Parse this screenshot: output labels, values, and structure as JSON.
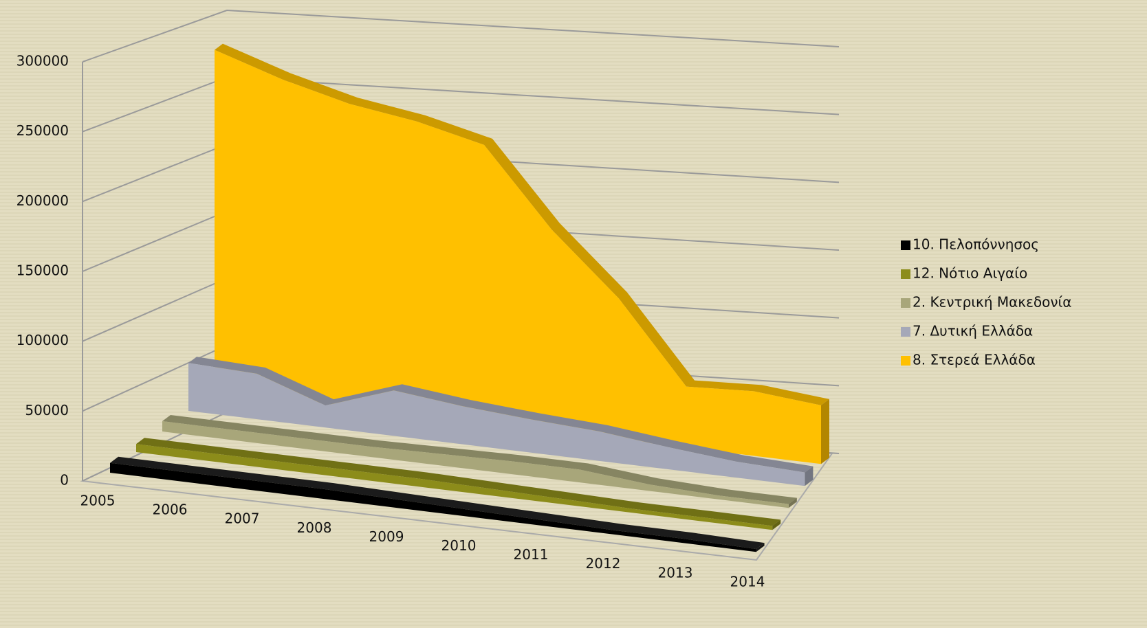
{
  "chart_data": {
    "type": "area3d",
    "categories": [
      "2005",
      "2006",
      "2007",
      "2008",
      "2009",
      "2010",
      "2011",
      "2012",
      "2013",
      "2014"
    ],
    "series": [
      {
        "name": "10. Πελοπόννησος",
        "color": "#000000",
        "values": [
          7000,
          7000,
          7000,
          7000,
          6000,
          5000,
          4000,
          3000,
          3000,
          2000
        ]
      },
      {
        "name": "12. Νότιο Αιγαίο",
        "color": "#8c8c1a",
        "values": [
          6000,
          6000,
          6000,
          6000,
          6000,
          5000,
          4000,
          3000,
          3000,
          3000
        ]
      },
      {
        "name": "2. Κεντρική Μακεδονία",
        "color": "#a8a67a",
        "values": [
          8000,
          8000,
          8000,
          8000,
          9000,
          10000,
          10000,
          5000,
          3000,
          3000
        ]
      },
      {
        "name": "7. Δυτική Ελλάδα",
        "color": "#a5a8b8",
        "values": [
          39000,
          37000,
          18000,
          37000,
          31000,
          27000,
          24000,
          18000,
          13000,
          11000
        ]
      },
      {
        "name": "8. Στερεά Ελλάδα",
        "color": "#ffc000",
        "values": [
          290000,
          272000,
          258000,
          250000,
          237000,
          172000,
          120000,
          52000,
          55000,
          50000
        ]
      }
    ],
    "ylim": [
      0,
      300000
    ],
    "yticks": [
      0,
      50000,
      100000,
      150000,
      200000,
      250000,
      300000
    ],
    "grid": true,
    "legend": "right"
  }
}
